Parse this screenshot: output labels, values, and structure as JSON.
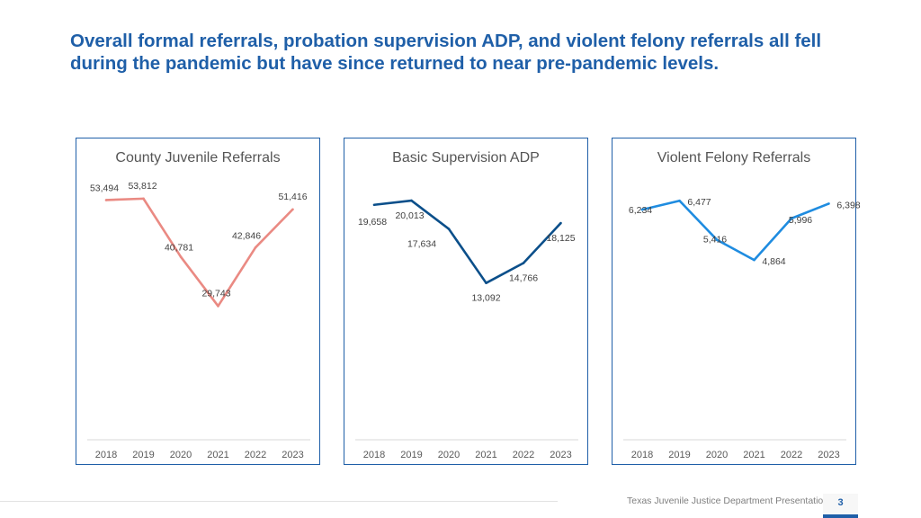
{
  "headline": {
    "line1": "Overall formal referrals, probation supervision ADP, and violent felony referrals all fell",
    "line2": "during the pandemic but have since returned to near pre-pandemic levels."
  },
  "chart_data": [
    {
      "type": "line",
      "title": "County Juvenile Referrals",
      "categories": [
        "2018",
        "2019",
        "2020",
        "2021",
        "2022",
        "2023"
      ],
      "values": [
        53494,
        53812,
        40781,
        29743,
        42846,
        51416
      ],
      "labels": [
        "53,494",
        "53,812",
        "40,781",
        "29,743",
        "42,846",
        "51,416"
      ],
      "ylim": [
        0,
        56000
      ],
      "color": "#ea8a83",
      "grid": false
    },
    {
      "type": "line",
      "title": "Basic Supervision ADP",
      "categories": [
        "2018",
        "2019",
        "2020",
        "2021",
        "2022",
        "2023"
      ],
      "values": [
        19658,
        20013,
        17634,
        13092,
        14766,
        18125
      ],
      "labels": [
        "19,658",
        "20,013",
        "17,634",
        "13,092",
        "14,766",
        "18,125"
      ],
      "ylim": [
        0,
        21000
      ],
      "color": "#0b4f8a",
      "grid": false
    },
    {
      "type": "line",
      "title": "Violent Felony Referrals",
      "categories": [
        "2018",
        "2019",
        "2020",
        "2021",
        "2022",
        "2023"
      ],
      "values": [
        6234,
        6477,
        5416,
        4864,
        5996,
        6398
      ],
      "labels": [
        "6,234",
        "6,477",
        "5,416",
        "4,864",
        "5,996",
        "6,398"
      ],
      "ylim": [
        0,
        6800
      ],
      "color": "#1f8ce0",
      "grid": false
    }
  ],
  "footer": {
    "text": "Texas Juvenile Justice Department Presentation",
    "page": "3"
  }
}
